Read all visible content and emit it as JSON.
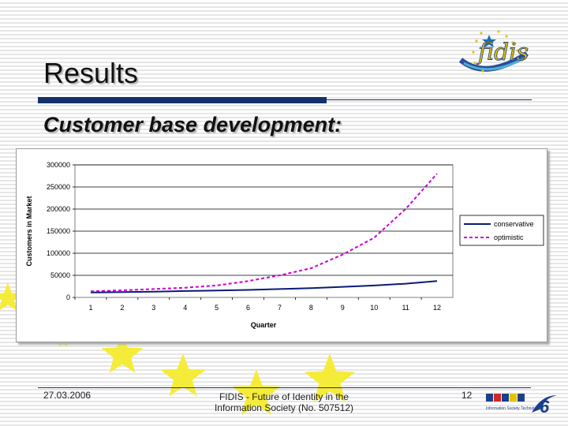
{
  "slide": {
    "title": "Results",
    "subtitle": "Customer base development:",
    "footer": {
      "date": "27.03.2006",
      "center_line1": "FIDIS - Future of Identity in the",
      "center_line2": "Information Society (No. 507512)",
      "page": "12"
    },
    "logos": {
      "fidis": "fidis",
      "ist": "Information Society Technologies"
    },
    "colors": {
      "title_bar": "#14306b",
      "stars": "#f5ec3a",
      "conservative": "#0a1a7a",
      "optimistic": "#cc00cc"
    }
  },
  "chart_data": {
    "type": "line",
    "title": "",
    "xlabel": "Quarter",
    "ylabel": "Customers in Market",
    "categories": [
      "1",
      "2",
      "3",
      "4",
      "5",
      "6",
      "7",
      "8",
      "9",
      "10",
      "11",
      "12"
    ],
    "ylim": [
      0,
      300000
    ],
    "yticks": [
      "0",
      "50000",
      "100000",
      "150000",
      "200000",
      "250000",
      "300000"
    ],
    "grid": true,
    "legend_position": "right",
    "series": [
      {
        "name": "conservative",
        "style": "solid",
        "values": [
          11000,
          12000,
          13000,
          14500,
          15500,
          17000,
          19000,
          21000,
          24000,
          27000,
          31000,
          37000
        ]
      },
      {
        "name": "optimistic",
        "style": "dashed",
        "values": [
          14000,
          16000,
          19000,
          22000,
          27000,
          37000,
          50000,
          66000,
          97000,
          135000,
          200000,
          280000
        ]
      }
    ]
  }
}
